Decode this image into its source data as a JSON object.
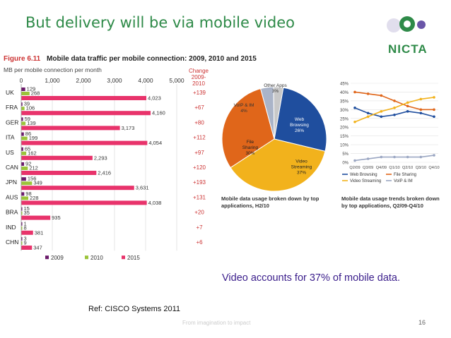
{
  "slide": {
    "title": "But delivery will be via mobile video",
    "logo_text": "NICTA",
    "caption": "Video accounts for 37% of mobile data.",
    "reference": "Ref: CISCO Systems 2011",
    "footer": "From imagination to impact",
    "page_number": "16"
  },
  "colors": {
    "title": "#2e8a48",
    "bar_2009": "#6b1b6b",
    "bar_2010": "#9bc43a",
    "bar_2015": "#e8336b",
    "caption": "#3a1d8b"
  },
  "chart_data": [
    {
      "type": "bar",
      "figure_label": "Figure 6.11",
      "title": "Mobile data traffic per mobile connection: 2009, 2010 and 2015",
      "xlabel": "MB per mobile connection per month",
      "change_header": [
        "Change",
        "2009-2010"
      ],
      "xlim": [
        0,
        5000
      ],
      "xticks": [
        "0",
        "1,000",
        "2,000",
        "3,000",
        "4,000",
        "5,000"
      ],
      "categories": [
        "UK",
        "FRA",
        "GER",
        "ITA",
        "US",
        "CAN",
        "JPN",
        "AUS",
        "BRA",
        "IND",
        "CHN"
      ],
      "series": [
        {
          "name": "2009",
          "values": [
            129,
            39,
            59,
            86,
            65,
            92,
            156,
            98,
            15,
            1,
            3
          ],
          "labels": [
            "129",
            "39",
            "59",
            "86",
            "65",
            "92",
            "156",
            "98",
            "15",
            "1",
            "3"
          ]
        },
        {
          "name": "2010",
          "values": [
            268,
            106,
            139,
            199,
            162,
            212,
            349,
            228,
            35,
            8,
            9
          ],
          "labels": [
            "268",
            "106",
            "139",
            "199",
            "162",
            "212",
            "349",
            "228",
            "35",
            "8",
            "9"
          ]
        },
        {
          "name": "2015",
          "values": [
            4023,
            4160,
            3173,
            4054,
            2293,
            2416,
            3631,
            4038,
            935,
            381,
            347
          ],
          "labels": [
            "4,023",
            "4,160",
            "3,173",
            "4,054",
            "2,293",
            "2,416",
            "3,631",
            "4,038",
            "935",
            "381",
            "347"
          ]
        }
      ],
      "change": [
        "+139",
        "+67",
        "+80",
        "+112",
        "+97",
        "+120",
        "+193",
        "+131",
        "+20",
        "+7",
        "+6"
      ],
      "legend_placement": "bottom"
    },
    {
      "type": "pie",
      "title": "Mobile data usage broken down by top applications, H2/10",
      "slices": [
        {
          "name": "Web Browsing",
          "value": 26,
          "label": "26%",
          "color": "#1f4e9e"
        },
        {
          "name": "Video Streaming",
          "value": 37,
          "label": "37%",
          "color": "#f2b21c"
        },
        {
          "name": "File Sharing",
          "value": 30,
          "label": "30%",
          "color": "#e0661a"
        },
        {
          "name": "VoIP & IM",
          "value": 4,
          "label": "4%",
          "color": "#aab4c8"
        },
        {
          "name": "Other Apps",
          "value": 3,
          "label": "3%",
          "color": "#c8c8c8"
        }
      ]
    },
    {
      "type": "line",
      "title": "Mobile data usage trends broken down by top applications, Q2/09-Q4/10",
      "categories": [
        "Q2/09",
        "Q3/09",
        "Q4/09",
        "Q1/10",
        "Q2/10",
        "Q3/10",
        "Q4/10"
      ],
      "ylim": [
        0,
        45
      ],
      "yticks": [
        "0%",
        "5%",
        "10%",
        "15%",
        "20%",
        "25%",
        "30%",
        "35%",
        "40%",
        "45%"
      ],
      "series": [
        {
          "name": "Web Browsing",
          "values": [
            31,
            28,
            26,
            27,
            29,
            28,
            26
          ],
          "color": "#1f4e9e"
        },
        {
          "name": "File Sharing",
          "values": [
            40,
            39,
            38,
            35,
            32,
            30,
            30
          ],
          "color": "#e0661a"
        },
        {
          "name": "Video Streaming",
          "values": [
            23,
            26,
            29,
            31,
            34,
            36,
            37
          ],
          "color": "#f2b21c"
        },
        {
          "name": "VoIP & IM",
          "values": [
            1,
            2,
            3,
            3,
            3,
            3,
            4
          ],
          "color": "#9aa6c2"
        }
      ],
      "grid": true,
      "legend_placement": "bottom"
    }
  ]
}
